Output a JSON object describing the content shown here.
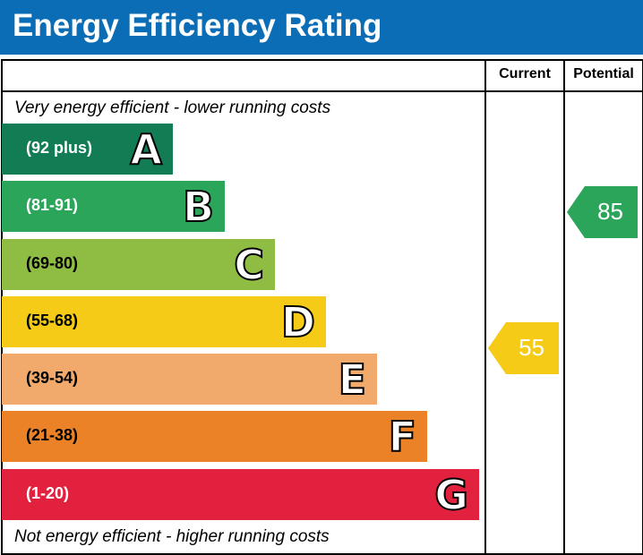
{
  "title": "Energy Efficiency Rating",
  "columns": {
    "current": "Current",
    "potential": "Potential"
  },
  "notes": {
    "top": "Very energy efficient - lower running costs",
    "bottom": "Not energy efficient - higher running costs"
  },
  "chart_data": {
    "type": "bar",
    "title": "Energy Efficiency Rating",
    "categories": [
      "A",
      "B",
      "C",
      "D",
      "E",
      "F",
      "G"
    ],
    "ranges": [
      "(92 plus)",
      "(81-91)",
      "(69-80)",
      "(55-68)",
      "(39-54)",
      "(21-38)",
      "(1-20)"
    ],
    "colors": [
      "#127c55",
      "#2ba55a",
      "#8fbd44",
      "#f5cb18",
      "#f2a96c",
      "#ec8227",
      "#e1213d"
    ],
    "current": {
      "value": 55,
      "band": "D",
      "color": "#f5cb18"
    },
    "potential": {
      "value": 85,
      "band": "B",
      "color": "#2ba55a"
    }
  }
}
